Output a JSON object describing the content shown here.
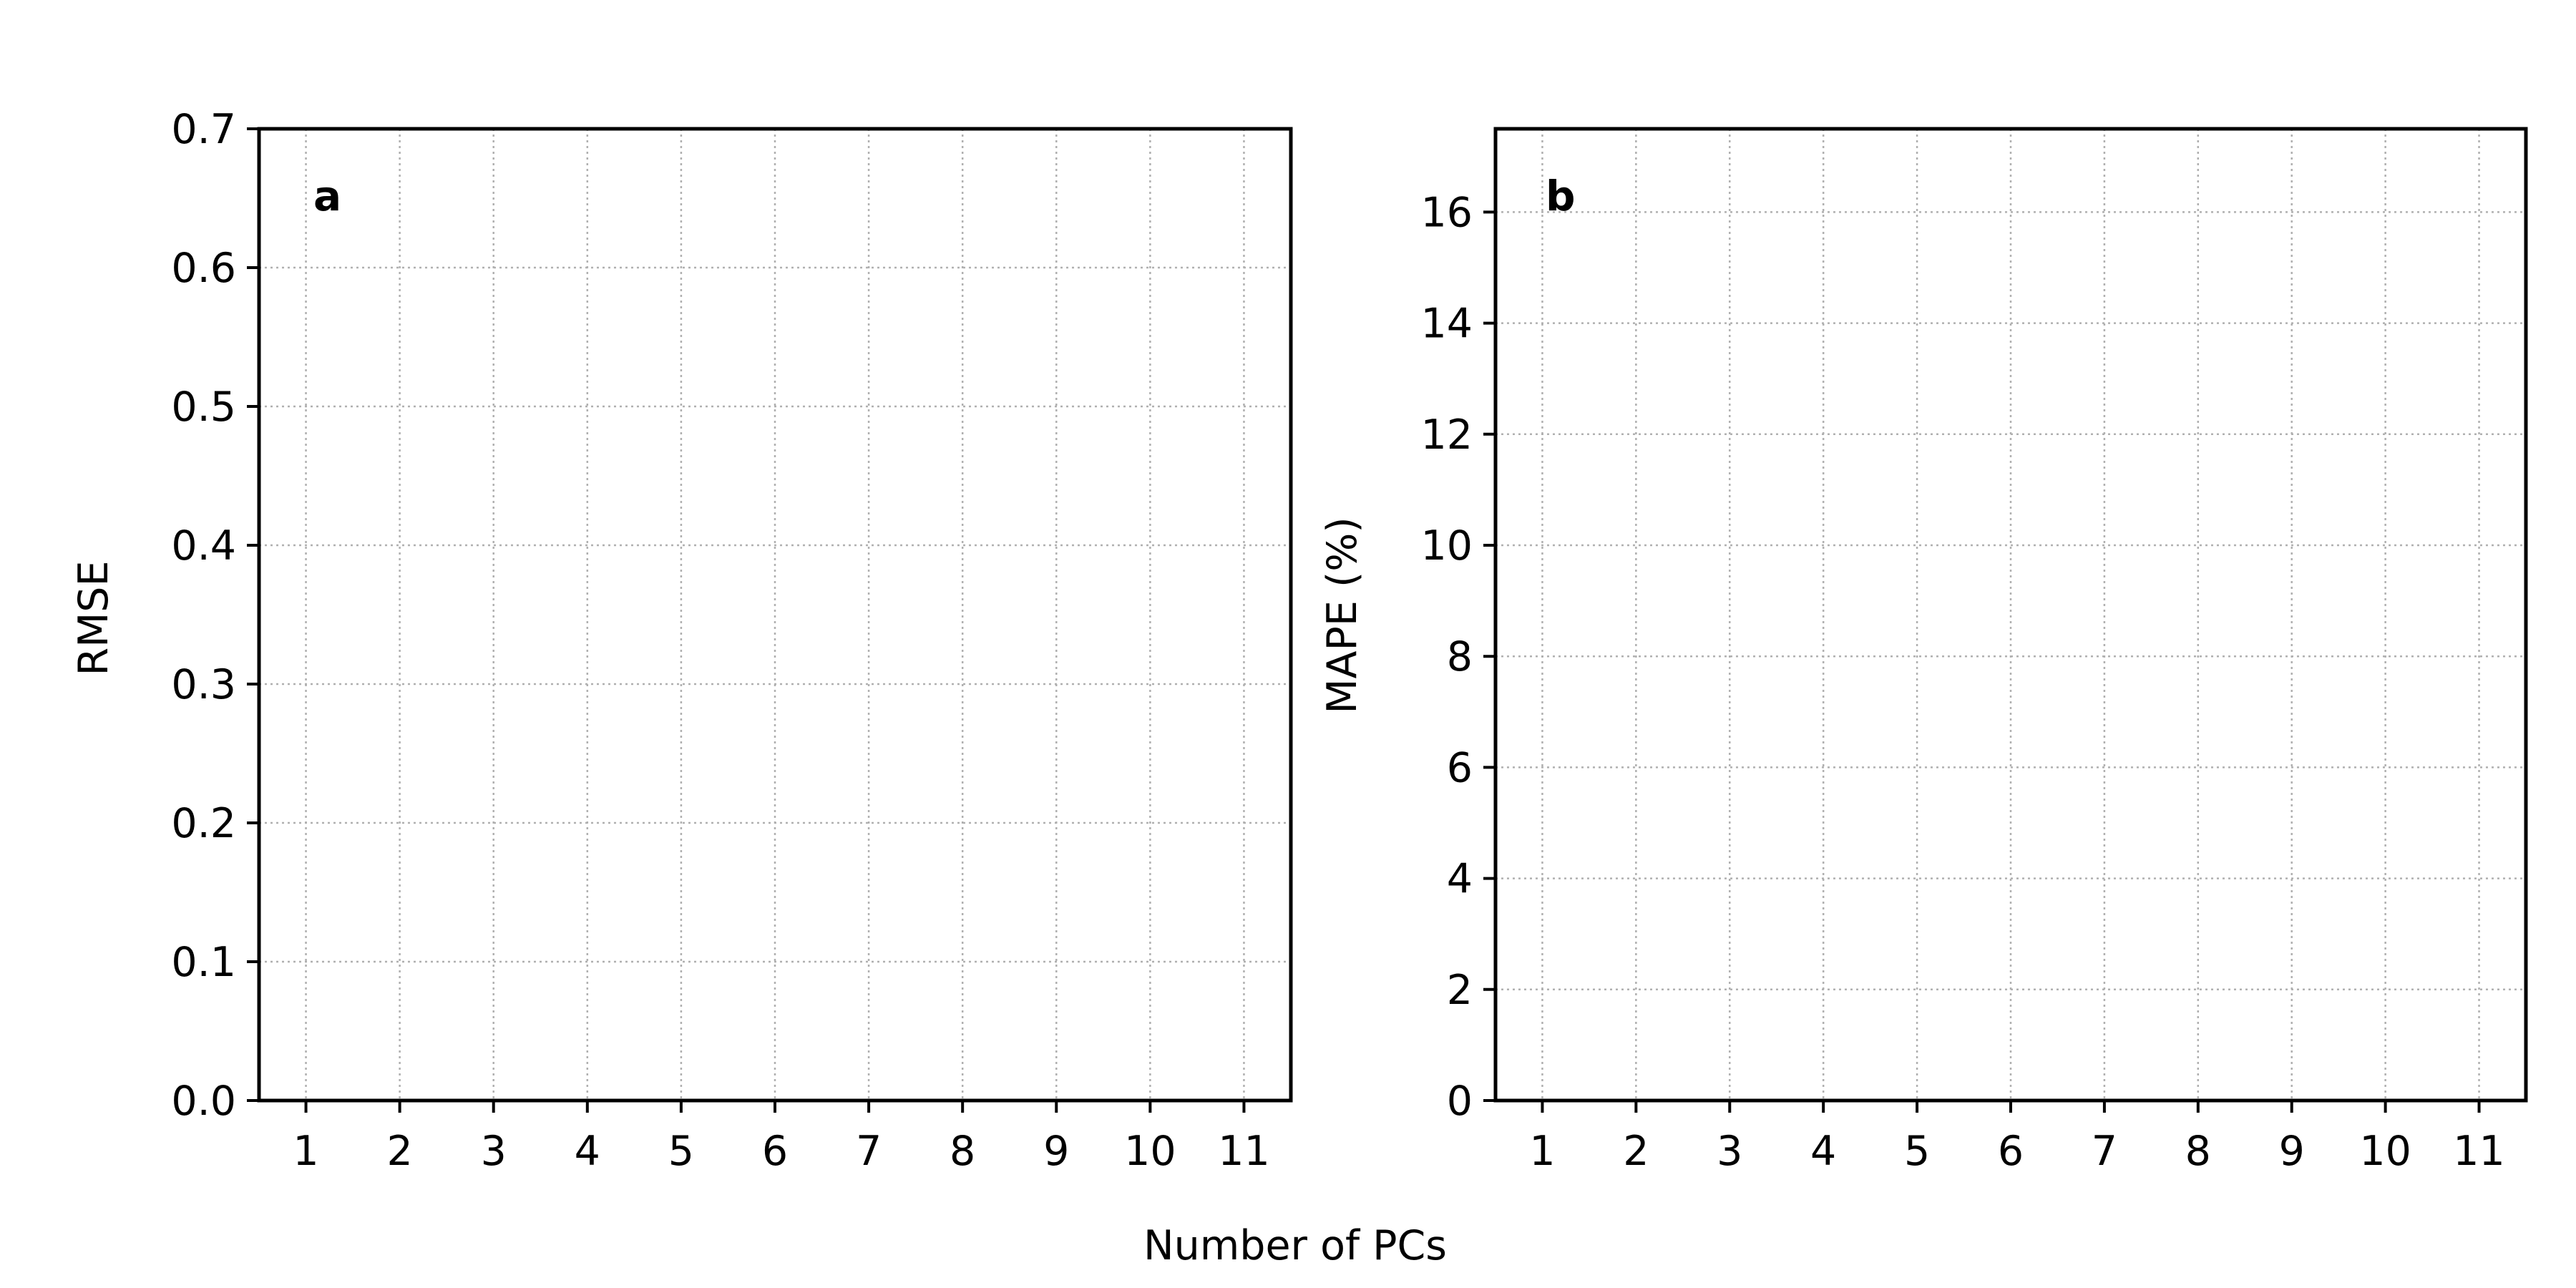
{
  "figure": {
    "xlabel": "Number of PCs"
  },
  "chart_data": [
    {
      "type": "line",
      "panel_label": "a",
      "title": "",
      "xlabel": "",
      "ylabel": "RMSE",
      "x_ticks": [
        "1",
        "2",
        "3",
        "4",
        "5",
        "6",
        "7",
        "8",
        "9",
        "10",
        "11"
      ],
      "y_ticks": [
        "0.0",
        "0.1",
        "0.2",
        "0.3",
        "0.4",
        "0.5",
        "0.6",
        "0.7"
      ],
      "y_tick_values": [
        0,
        0.1,
        0.2,
        0.3,
        0.4,
        0.5,
        0.6,
        0.7
      ],
      "xlim": [
        0.5,
        11.5
      ],
      "ylim": [
        0,
        0.7
      ],
      "grid": true,
      "series": []
    },
    {
      "type": "line",
      "panel_label": "b",
      "title": "",
      "xlabel": "",
      "ylabel": "MAPE (%)",
      "x_ticks": [
        "1",
        "2",
        "3",
        "4",
        "5",
        "6",
        "7",
        "8",
        "9",
        "10",
        "11"
      ],
      "y_ticks": [
        "0",
        "2",
        "4",
        "6",
        "8",
        "10",
        "12",
        "14",
        "16"
      ],
      "y_tick_values": [
        0,
        2,
        4,
        6,
        8,
        10,
        12,
        14,
        16
      ],
      "xlim": [
        0.5,
        11.5
      ],
      "ylim": [
        0,
        17.5
      ],
      "grid": true,
      "series": []
    }
  ]
}
